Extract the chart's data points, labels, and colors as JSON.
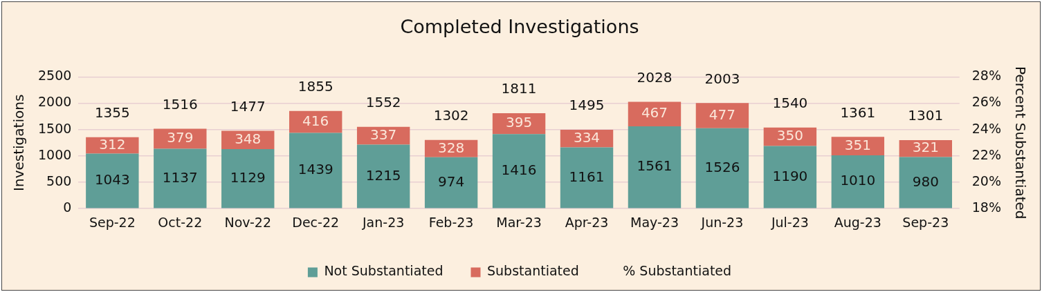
{
  "chart_data": {
    "type": "bar",
    "title": "Completed Investigations",
    "ylabel": "Investigations",
    "y2label": "Percent Substantiated",
    "categories": [
      "Sep-22",
      "Oct-22",
      "Nov-22",
      "Dec-22",
      "Jan-23",
      "Feb-23",
      "Mar-23",
      "Apr-23",
      "May-23",
      "Jun-23",
      "Jul-23",
      "Aug-23",
      "Sep-23"
    ],
    "stacked": true,
    "series": [
      {
        "name": "Not Substantiated",
        "color": "#5f9e97",
        "values": [
          1043,
          1137,
          1129,
          1439,
          1215,
          974,
          1416,
          1161,
          1561,
          1526,
          1190,
          1010,
          980
        ]
      },
      {
        "name": "Substantiated",
        "color": "#d86b5e",
        "values": [
          312,
          379,
          348,
          416,
          337,
          328,
          395,
          334,
          467,
          477,
          350,
          351,
          321
        ]
      },
      {
        "name": "% Substantiated",
        "type": "line",
        "axis": "y2",
        "values": [
          null,
          null,
          null,
          null,
          null,
          null,
          null,
          null,
          null,
          null,
          null,
          null,
          null
        ]
      }
    ],
    "ylim": [
      0,
      2500
    ],
    "yticks": [
      0,
      500,
      1000,
      1500,
      2000,
      2500
    ],
    "y2lim": [
      18,
      28
    ],
    "y2ticks": [
      {
        "value": 18,
        "label": "18%"
      },
      {
        "value": 20,
        "label": "20%"
      },
      {
        "value": 22,
        "label": "22%"
      },
      {
        "value": 24,
        "label": "24%"
      },
      {
        "value": 26,
        "label": "26%"
      },
      {
        "value": 28,
        "label": "28%"
      }
    ],
    "data_labels": true,
    "totals": [
      "1355",
      "1516",
      "1477",
      "1855",
      "1552",
      "1302",
      "1811",
      "1495",
      "2028",
      "2003",
      "1540",
      "1361",
      "1301"
    ],
    "grid": "y",
    "legend": "bottom"
  }
}
